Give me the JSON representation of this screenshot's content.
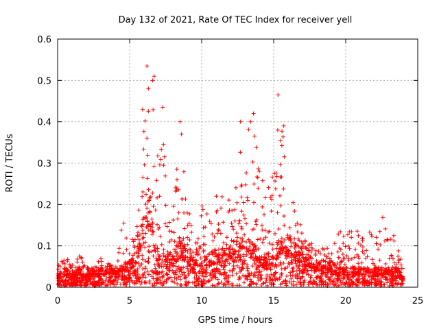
{
  "chart_data": {
    "type": "scatter",
    "title": "Day 132 of 2021, Rate Of TEC Index for receiver yell",
    "xlabel": "GPS time / hours",
    "ylabel": "ROTI / TECUs",
    "xlim": [
      0,
      25
    ],
    "ylim": [
      0,
      0.6
    ],
    "xticks": [
      "0",
      "5",
      "10",
      "15",
      "20",
      "25"
    ],
    "yticks": [
      "0",
      "0.1",
      "0.2",
      "0.3",
      "0.4",
      "0.5",
      "0.6"
    ],
    "grid": true,
    "marker": "plus",
    "color": "#ff0000",
    "envelope": [
      [
        0.0,
        0.02,
        0.05
      ],
      [
        0.5,
        0.03,
        0.09
      ],
      [
        1.0,
        0.02,
        0.06
      ],
      [
        1.5,
        0.03,
        0.08
      ],
      [
        2.0,
        0.02,
        0.05
      ],
      [
        2.5,
        0.03,
        0.05
      ],
      [
        3.0,
        0.03,
        0.07
      ],
      [
        3.5,
        0.03,
        0.06
      ],
      [
        4.0,
        0.03,
        0.05
      ],
      [
        4.5,
        0.04,
        0.16
      ],
      [
        5.0,
        0.04,
        0.1
      ],
      [
        5.5,
        0.06,
        0.15
      ],
      [
        5.8,
        0.1,
        0.25
      ],
      [
        6.0,
        0.15,
        0.43
      ],
      [
        6.3,
        0.15,
        0.54
      ],
      [
        6.6,
        0.1,
        0.5
      ],
      [
        7.0,
        0.05,
        0.3
      ],
      [
        7.3,
        0.05,
        0.44
      ],
      [
        7.6,
        0.05,
        0.2
      ],
      [
        8.0,
        0.06,
        0.28
      ],
      [
        8.5,
        0.07,
        0.4
      ],
      [
        9.0,
        0.06,
        0.22
      ],
      [
        9.5,
        0.04,
        0.15
      ],
      [
        10.0,
        0.04,
        0.21
      ],
      [
        10.5,
        0.05,
        0.18
      ],
      [
        11.0,
        0.06,
        0.26
      ],
      [
        11.5,
        0.06,
        0.22
      ],
      [
        12.0,
        0.07,
        0.25
      ],
      [
        12.5,
        0.07,
        0.32
      ],
      [
        13.0,
        0.08,
        0.4
      ],
      [
        13.5,
        0.07,
        0.42
      ],
      [
        14.0,
        0.05,
        0.35
      ],
      [
        14.5,
        0.05,
        0.25
      ],
      [
        15.0,
        0.06,
        0.28
      ],
      [
        15.3,
        0.07,
        0.46
      ],
      [
        15.6,
        0.08,
        0.4
      ],
      [
        16.0,
        0.08,
        0.25
      ],
      [
        16.5,
        0.07,
        0.2
      ],
      [
        17.0,
        0.05,
        0.13
      ],
      [
        17.5,
        0.05,
        0.11
      ],
      [
        18.0,
        0.04,
        0.12
      ],
      [
        18.5,
        0.04,
        0.1
      ],
      [
        19.0,
        0.04,
        0.1
      ],
      [
        19.5,
        0.03,
        0.17
      ],
      [
        20.0,
        0.03,
        0.14
      ],
      [
        20.5,
        0.03,
        0.16
      ],
      [
        21.0,
        0.03,
        0.14
      ],
      [
        21.5,
        0.03,
        0.17
      ],
      [
        22.0,
        0.03,
        0.1
      ],
      [
        22.5,
        0.03,
        0.18
      ],
      [
        23.0,
        0.03,
        0.16
      ],
      [
        23.5,
        0.03,
        0.12
      ],
      [
        24.0,
        0.02,
        0.05
      ]
    ],
    "outliers": [
      [
        6.2,
        0.535
      ],
      [
        6.3,
        0.48
      ],
      [
        6.6,
        0.5
      ],
      [
        6.7,
        0.51
      ],
      [
        5.9,
        0.43
      ],
      [
        7.3,
        0.435
      ],
      [
        8.5,
        0.4
      ],
      [
        15.3,
        0.465
      ],
      [
        13.6,
        0.42
      ],
      [
        13.4,
        0.4
      ],
      [
        12.7,
        0.4
      ],
      [
        15.7,
        0.39
      ],
      [
        6.2,
        0.36
      ],
      [
        8.6,
        0.37
      ],
      [
        4.6,
        0.155
      ]
    ],
    "point_count": 2600
  }
}
